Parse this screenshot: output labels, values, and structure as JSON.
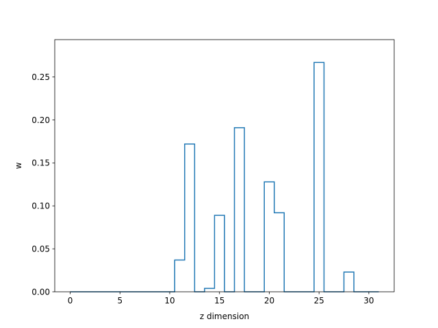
{
  "chart_data": {
    "type": "line",
    "drawstyle": "steps-mid",
    "title": "",
    "xlabel": "z dimension",
    "ylabel": "w",
    "xlim": [
      -1.55,
      32.55
    ],
    "ylim": [
      0,
      0.2935
    ],
    "xticks": [
      0,
      5,
      10,
      15,
      20,
      25,
      30
    ],
    "xtick_labels": [
      "0",
      "5",
      "10",
      "15",
      "20",
      "25",
      "30"
    ],
    "yticks": [
      0.0,
      0.05,
      0.1,
      0.15,
      0.2,
      0.25
    ],
    "ytick_labels": [
      "0.00",
      "0.05",
      "0.10",
      "0.15",
      "0.20",
      "0.25"
    ],
    "grid": false,
    "series": [
      {
        "color": "#1f77b4",
        "x": [
          0,
          1,
          2,
          3,
          4,
          5,
          6,
          7,
          8,
          9,
          10,
          11,
          12,
          13,
          14,
          15,
          16,
          17,
          18,
          19,
          20,
          21,
          22,
          23,
          24,
          25,
          26,
          27,
          28,
          29,
          30,
          31
        ],
        "y": [
          0,
          0,
          0,
          0,
          0,
          0,
          0,
          0,
          0,
          0,
          0,
          0.037,
          0.172,
          0,
          0.004,
          0.089,
          0,
          0.191,
          0,
          0,
          0.128,
          0.092,
          0,
          0,
          0,
          0.267,
          0,
          0,
          0.023,
          0,
          0,
          0
        ]
      }
    ]
  }
}
